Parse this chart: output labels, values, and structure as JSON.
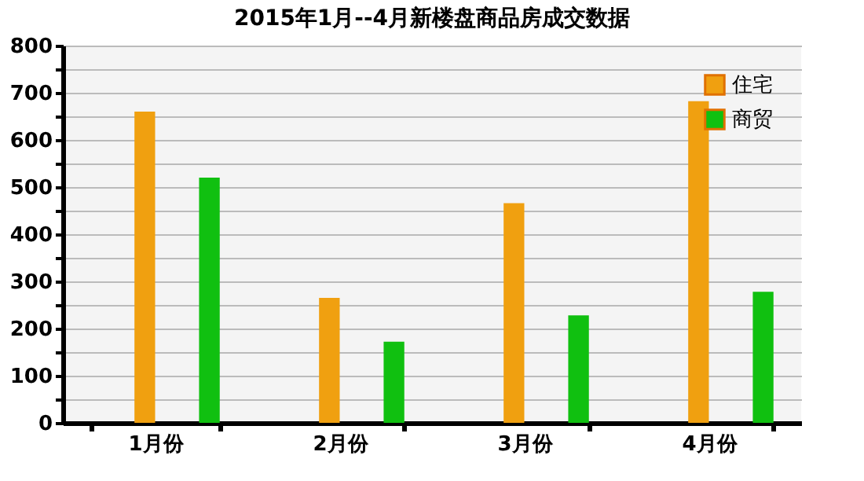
{
  "chart_data": {
    "type": "bar",
    "title": "2015年1月--4月新楼盘商品房成交数据",
    "categories": [
      "1月份",
      "2月份",
      "3月份",
      "4月份"
    ],
    "series": [
      {
        "name": "住宅",
        "color": "#f0a010",
        "values": [
          660,
          265,
          466,
          682
        ]
      },
      {
        "name": "商贸",
        "color": "#10c010",
        "values": [
          520,
          172,
          228,
          278
        ]
      }
    ],
    "ylim": [
      0,
      800
    ],
    "yticks": [
      0,
      {
        "value": 50,
        "label": null
      },
      100,
      {
        "value": 150,
        "label": null
      },
      200,
      {
        "value": 250,
        "label": null
      },
      300,
      {
        "value": 350,
        "label": null
      },
      400,
      {
        "value": 450,
        "label": null
      },
      500,
      {
        "value": 550,
        "label": null
      },
      600,
      {
        "value": 650,
        "label": null
      },
      700,
      {
        "value": 750,
        "label": null
      },
      800
    ],
    "grid": "y",
    "legend": "top right"
  }
}
